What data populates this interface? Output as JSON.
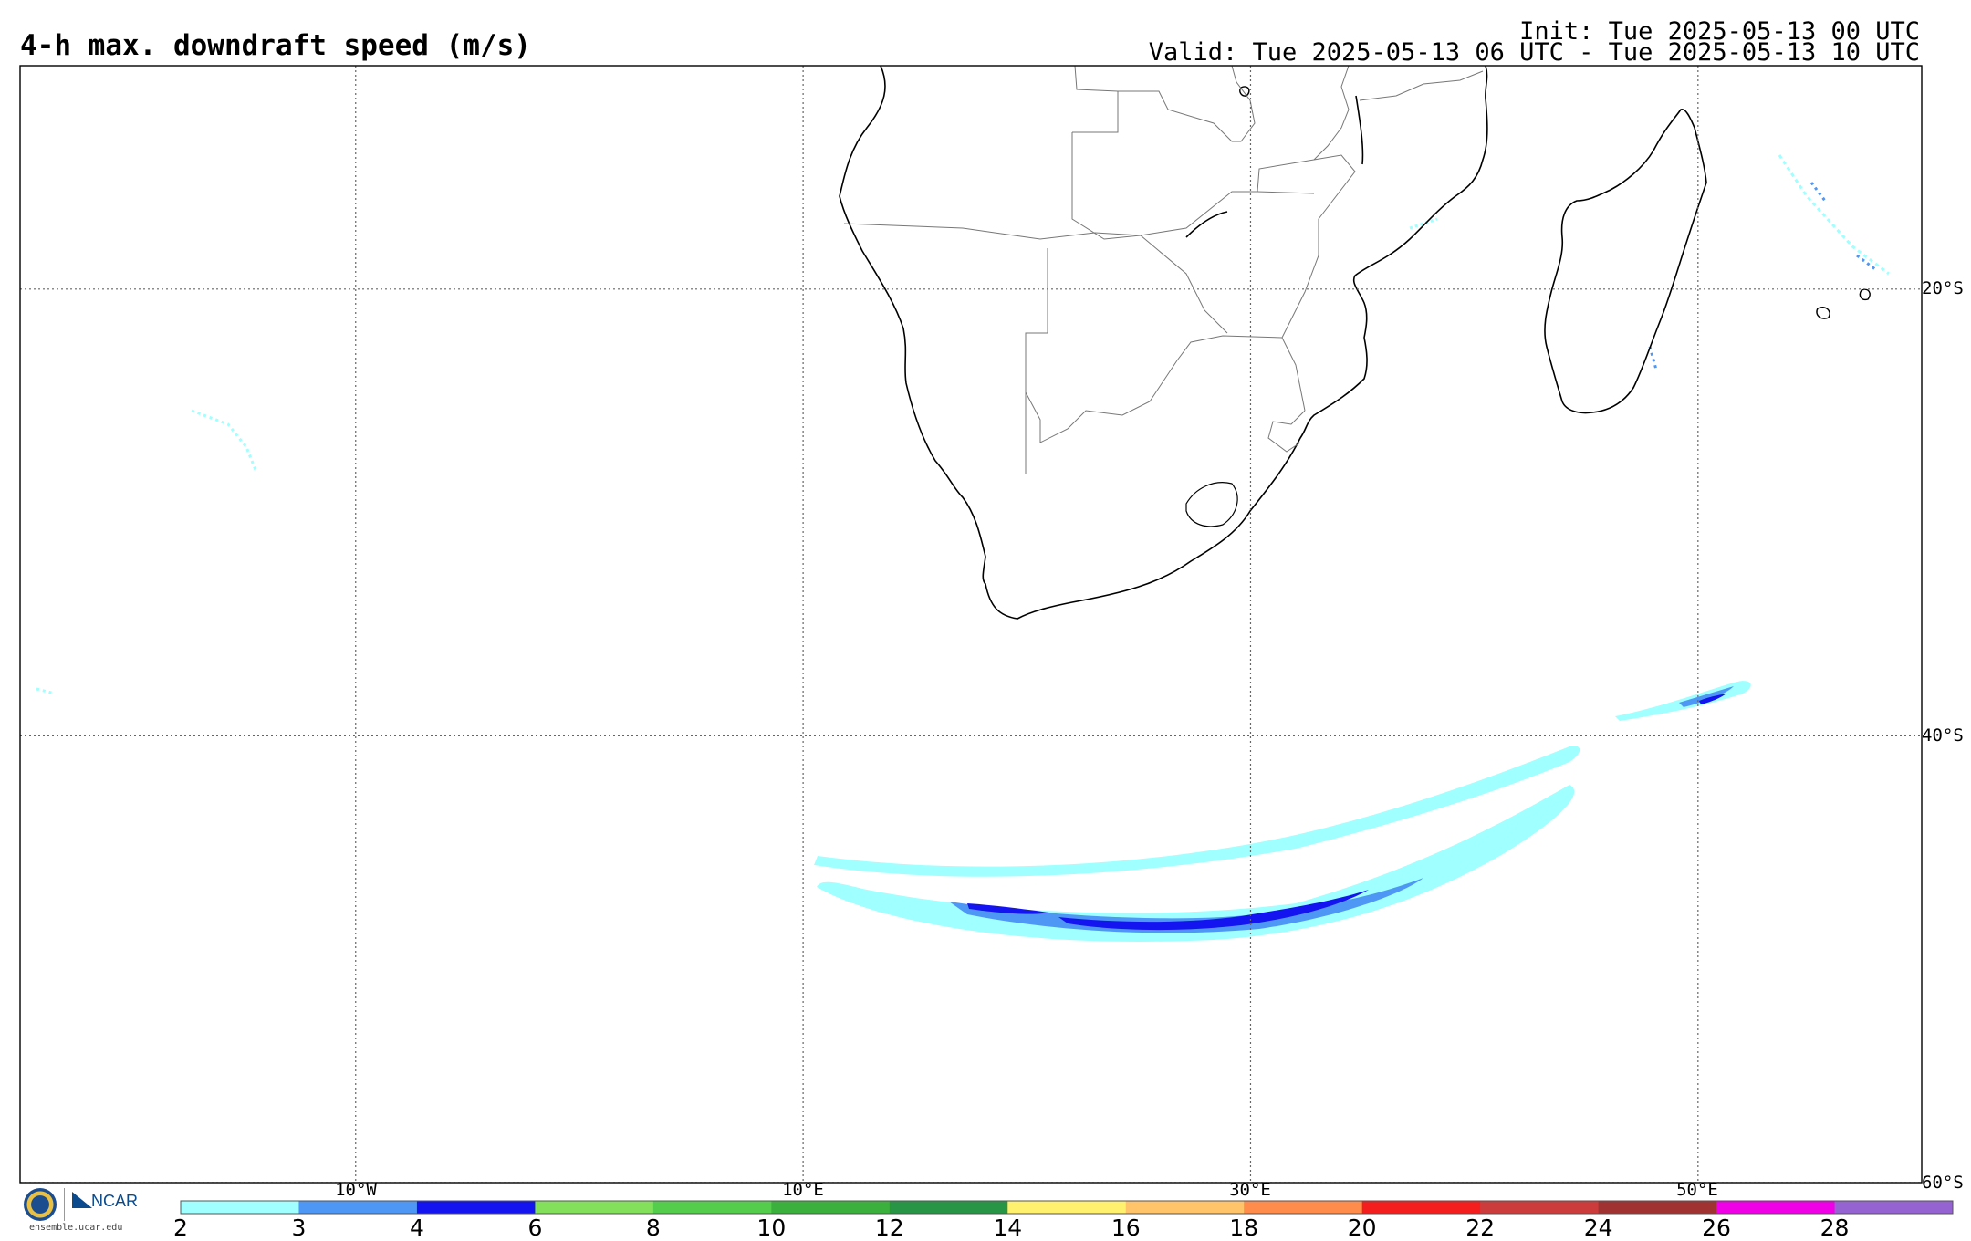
{
  "header": {
    "title": "4-h max. downdraft speed (m/s)",
    "init": "Init: Tue 2025-05-13 00 UTC",
    "valid": "Valid: Tue 2025-05-13 06 UTC - Tue 2025-05-13 10 UTC"
  },
  "map": {
    "projection": "cylindrical equidistant",
    "lon_range": [
      -25,
      60
    ],
    "lat_range": [
      -60,
      -10
    ],
    "grid_longitudes": [
      -10,
      10,
      30,
      50
    ],
    "grid_latitudes": [
      -20,
      -40,
      -60
    ],
    "lon_labels": [
      "10°W",
      "10°E",
      "30°E",
      "50°E"
    ],
    "lat_labels": [
      "20°S",
      "40°S",
      "60°S"
    ],
    "grid_style": "dotted",
    "regions": [
      "southern Africa",
      "Madagascar",
      "South Atlantic Ocean",
      "Indian Ocean",
      "Southern Ocean"
    ]
  },
  "colorbar": {
    "ticks": [
      "2",
      "3",
      "4",
      "6",
      "8",
      "10",
      "12",
      "14",
      "16",
      "18",
      "20",
      "22",
      "24",
      "26",
      "28"
    ],
    "colors": [
      "#a0ffff",
      "#4f97f4",
      "#1414f0",
      "#82e05a",
      "#54cc4c",
      "#3cb03c",
      "#289446",
      "#fff06e",
      "#ffc46a",
      "#ff8c4a",
      "#f51e1e",
      "#cd3c3c",
      "#a03232",
      "#f000e6",
      "#9664d2"
    ]
  },
  "logos": {
    "nsf": "NSF",
    "ncar": "NCAR",
    "url": "ensemble.ucar.edu"
  }
}
